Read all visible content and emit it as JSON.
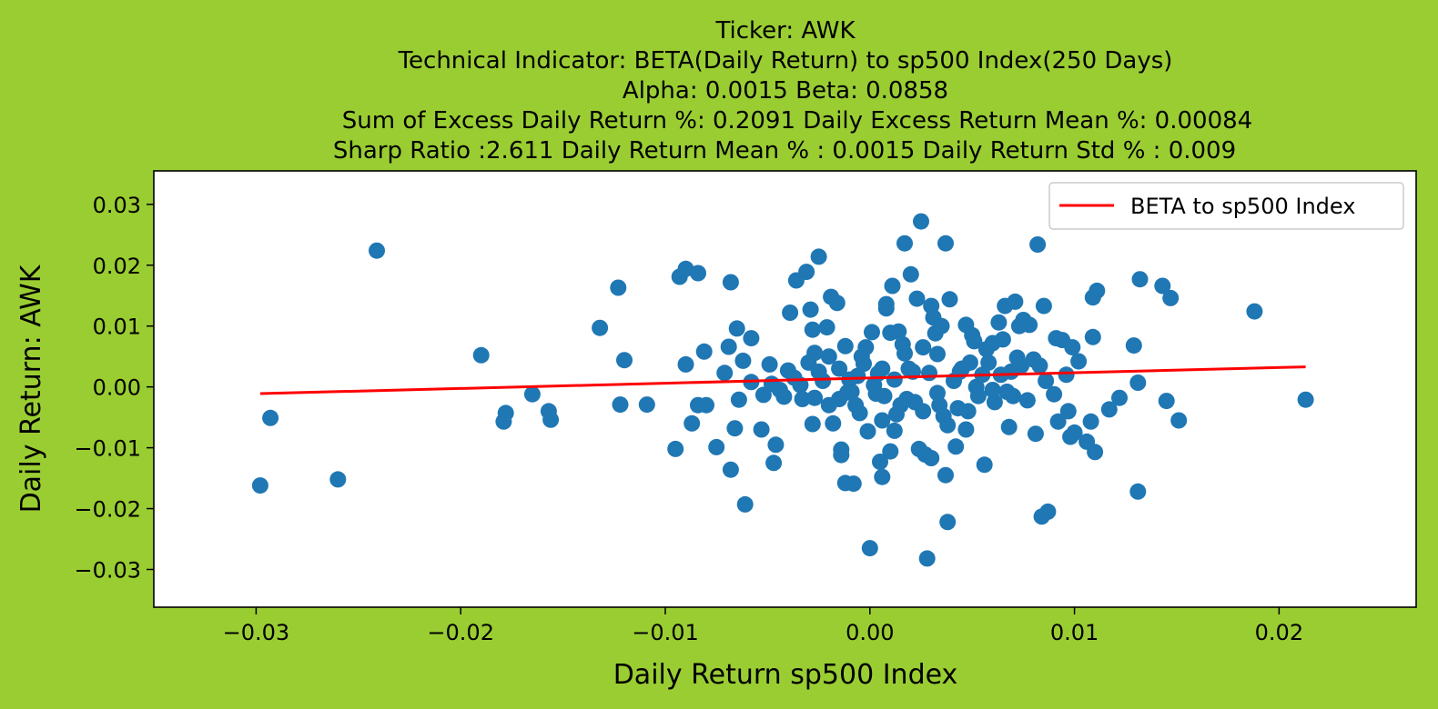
{
  "chart_data": {
    "type": "scatter",
    "title_lines": [
      "Ticker: AWK",
      "Technical Indicator: BETA(Daily Return) to sp500 Index(250 Days)",
      "Alpha: 0.0015   Beta: 0.0858",
      "Sum of Excess Daily Return %: 0.2091   Daily Excess Return Mean %: 0.00084",
      "Sharp Ratio :2.611    Daily Return Mean % : 0.0015    Daily Return Std % : 0.009"
    ],
    "xlabel": "Daily Return sp500 Index",
    "ylabel": "Daily Return: AWK",
    "xlim": [
      -0.035,
      0.0267
    ],
    "ylim": [
      -0.0362,
      0.0355
    ],
    "xticks": [
      -0.03,
      -0.02,
      -0.01,
      0.0,
      0.01,
      0.02
    ],
    "xtick_labels": [
      "−0.03",
      "−0.02",
      "−0.01",
      "0.00",
      "0.01",
      "0.02"
    ],
    "yticks": [
      0.03,
      0.02,
      0.01,
      0.0,
      -0.01,
      -0.02,
      -0.03
    ],
    "ytick_labels": [
      "0.03",
      "0.02",
      "0.01",
      "0.00",
      "−0.01",
      "−0.02",
      "−0.03"
    ],
    "grid": false,
    "legend": {
      "location": "top-right",
      "entries": [
        "BETA to sp500 Index"
      ]
    },
    "colors": {
      "background": "#9acd32",
      "plot_area": "#ffffff",
      "scatter": "#1f77b4",
      "line": "#ff0000"
    },
    "series": [
      {
        "kind": "scatter",
        "points": [
          [
            -0.0298,
            -0.0162
          ],
          [
            -0.0293,
            -0.0051
          ],
          [
            -0.0241,
            0.0224
          ],
          [
            -0.026,
            -0.0152
          ],
          [
            -0.019,
            0.0052
          ],
          [
            -0.0179,
            -0.0057
          ],
          [
            -0.0178,
            -0.0043
          ],
          [
            -0.0165,
            -0.0012
          ],
          [
            -0.0157,
            -0.004
          ],
          [
            -0.0156,
            -0.0054
          ],
          [
            -0.0132,
            0.0097
          ],
          [
            -0.0123,
            0.0163
          ],
          [
            -0.0122,
            -0.0029
          ],
          [
            -0.012,
            0.0044
          ],
          [
            -0.0109,
            -0.0029
          ],
          [
            -0.0095,
            -0.0102
          ],
          [
            -0.0093,
            0.0181
          ],
          [
            -0.009,
            0.0194
          ],
          [
            -0.009,
            0.0037
          ],
          [
            -0.0084,
            0.0187
          ],
          [
            -0.0087,
            -0.006
          ],
          [
            -0.0084,
            -0.003
          ],
          [
            -0.0081,
            0.0058
          ],
          [
            -0.008,
            -0.003
          ],
          [
            -0.0075,
            -0.0099
          ],
          [
            -0.0071,
            0.0023
          ],
          [
            -0.0069,
            0.0066
          ],
          [
            -0.0068,
            0.0172
          ],
          [
            -0.0068,
            -0.0136
          ],
          [
            -0.0066,
            -0.0068
          ],
          [
            -0.0065,
            0.0096
          ],
          [
            -0.0064,
            -0.0021
          ],
          [
            -0.0061,
            -0.0193
          ],
          [
            -0.0062,
            0.0043
          ],
          [
            -0.0058,
            0.008
          ],
          [
            -0.0058,
            0.0008
          ],
          [
            -0.0053,
            -0.007
          ],
          [
            -0.0052,
            -0.0013
          ],
          [
            -0.0049,
            0.0037
          ],
          [
            -0.0048,
            0.0005
          ],
          [
            -0.0047,
            -0.0125
          ],
          [
            -0.0046,
            -0.0095
          ],
          [
            -0.0042,
            -0.0016
          ],
          [
            -0.004,
            0.0027
          ],
          [
            -0.0039,
            0.0122
          ],
          [
            -0.0036,
            0.0175
          ],
          [
            -0.0034,
            0.0003
          ],
          [
            -0.0033,
            -0.002
          ],
          [
            -0.0031,
            0.0189
          ],
          [
            -0.003,
            0.004
          ],
          [
            -0.0029,
            0.0127
          ],
          [
            -0.0028,
            0.0094
          ],
          [
            -0.0027,
            0.0056
          ],
          [
            -0.0025,
            0.0214
          ],
          [
            -0.0028,
            -0.0061
          ],
          [
            -0.0027,
            -0.0018
          ],
          [
            -0.0023,
            0.001
          ],
          [
            -0.0021,
            0.0098
          ],
          [
            -0.0019,
            0.0148
          ],
          [
            -0.002,
            -0.003
          ],
          [
            -0.0018,
            -0.006
          ],
          [
            -0.0016,
            0.0138
          ],
          [
            -0.0015,
            0.003
          ],
          [
            -0.0014,
            -0.0112
          ],
          [
            -0.0014,
            -0.0103
          ],
          [
            -0.0012,
            0.0067
          ],
          [
            -0.0011,
            -0.0009
          ],
          [
            -0.0012,
            -0.0158
          ],
          [
            -0.0008,
            -0.0159
          ],
          [
            -0.0006,
            0.0018
          ],
          [
            -0.0005,
            -0.0043
          ],
          [
            -0.0004,
            0.005
          ],
          [
            -0.0002,
            0.0065
          ],
          [
            0.0001,
            0.009
          ],
          [
            0.0002,
            0.0003
          ],
          [
            -0.0001,
            -0.0073
          ],
          [
            0.0,
            -0.0265
          ],
          [
            0.0003,
            -0.0011
          ],
          [
            0.0005,
            -0.0123
          ],
          [
            0.0006,
            -0.0148
          ],
          [
            0.0006,
            0.003
          ],
          [
            0.0008,
            0.0129
          ],
          [
            0.0008,
            0.0136
          ],
          [
            0.001,
            0.0089
          ],
          [
            0.001,
            -0.0106
          ],
          [
            0.0011,
            0.0166
          ],
          [
            0.0012,
            -0.0072
          ],
          [
            0.0013,
            -0.0045
          ],
          [
            0.0014,
            0.0091
          ],
          [
            0.0016,
            0.007
          ],
          [
            0.0017,
            0.0236
          ],
          [
            0.0018,
            -0.002
          ],
          [
            0.002,
            0.0185
          ],
          [
            0.0021,
            0.0025
          ],
          [
            0.0022,
            -0.0025
          ],
          [
            0.0023,
            0.0145
          ],
          [
            0.0024,
            -0.0102
          ],
          [
            0.0025,
            0.0272
          ],
          [
            0.0026,
            0.0065
          ],
          [
            0.0027,
            -0.0111
          ],
          [
            0.0028,
            -0.0282
          ],
          [
            0.0029,
            0.0023
          ],
          [
            0.003,
            -0.0117
          ],
          [
            0.003,
            0.0133
          ],
          [
            0.0031,
            0.0114
          ],
          [
            0.0032,
            0.0088
          ],
          [
            0.0033,
            0.0054
          ],
          [
            0.0034,
            -0.003
          ],
          [
            0.0035,
            0.01
          ],
          [
            0.0036,
            -0.0048
          ],
          [
            0.0037,
            -0.0145
          ],
          [
            0.0037,
            0.0236
          ],
          [
            0.0038,
            -0.0063
          ],
          [
            0.0038,
            -0.0222
          ],
          [
            0.0039,
            0.0144
          ],
          [
            0.0041,
            0.001
          ],
          [
            0.0042,
            -0.0098
          ],
          [
            0.0043,
            -0.0035
          ],
          [
            0.0045,
            0.003
          ],
          [
            0.0047,
            0.0102
          ],
          [
            0.0047,
            -0.007
          ],
          [
            0.0048,
            -0.004
          ],
          [
            0.0049,
            0.004
          ],
          [
            0.005,
            0.0085
          ],
          [
            0.0051,
            0.0075
          ],
          [
            0.0052,
            0.0
          ],
          [
            0.0055,
            0.002
          ],
          [
            0.0056,
            -0.0128
          ],
          [
            0.0057,
            0.0062
          ],
          [
            0.0058,
            0.004
          ],
          [
            0.006,
            0.0072
          ],
          [
            0.0061,
            -0.0025
          ],
          [
            0.0063,
            0.0106
          ],
          [
            0.0064,
            0.002
          ],
          [
            0.0065,
            0.0078
          ],
          [
            0.0066,
            0.0133
          ],
          [
            0.0067,
            -0.0008
          ],
          [
            0.0068,
            -0.0066
          ],
          [
            0.0069,
            0.0025
          ],
          [
            0.007,
            -0.0015
          ],
          [
            0.0071,
            0.014
          ],
          [
            0.0072,
            0.0048
          ],
          [
            0.0073,
            0.01
          ],
          [
            0.0074,
            0.0035
          ],
          [
            0.0075,
            0.011
          ],
          [
            0.0077,
            -0.0022
          ],
          [
            0.0078,
            0.0102
          ],
          [
            0.008,
            0.0045
          ],
          [
            0.0081,
            -0.0077
          ],
          [
            0.0082,
            0.0234
          ],
          [
            0.0083,
            0.0035
          ],
          [
            0.0084,
            -0.0213
          ],
          [
            0.0085,
            0.0133
          ],
          [
            0.0086,
            0.001
          ],
          [
            0.0087,
            -0.0205
          ],
          [
            0.009,
            -0.0012
          ],
          [
            0.0091,
            0.008
          ],
          [
            0.0092,
            -0.0057
          ],
          [
            0.0094,
            0.0077
          ],
          [
            0.0096,
            0.002
          ],
          [
            0.0097,
            -0.004
          ],
          [
            0.0098,
            -0.0082
          ],
          [
            0.0099,
            0.0065
          ],
          [
            0.01,
            -0.0075
          ],
          [
            0.0102,
            0.0042
          ],
          [
            0.0106,
            -0.009
          ],
          [
            0.0108,
            -0.0057
          ],
          [
            0.0109,
            0.0147
          ],
          [
            0.0109,
            0.0082
          ],
          [
            0.011,
            -0.0107
          ],
          [
            0.0111,
            0.0158
          ],
          [
            0.0117,
            -0.0037
          ],
          [
            0.0122,
            -0.0018
          ],
          [
            0.0129,
            0.0068
          ],
          [
            0.0131,
            0.0007
          ],
          [
            0.0131,
            -0.0172
          ],
          [
            0.0132,
            0.0177
          ],
          [
            0.0143,
            0.0166
          ],
          [
            0.0145,
            -0.0023
          ],
          [
            0.0147,
            0.0146
          ],
          [
            0.0151,
            -0.0055
          ],
          [
            0.0188,
            0.0124
          ],
          [
            0.0213,
            -0.0021
          ],
          [
            -0.0015,
            -0.002
          ],
          [
            -0.001,
            0.0012
          ],
          [
            -0.0007,
            -0.003
          ],
          [
            0.0004,
            0.0022
          ],
          [
            0.0015,
            -0.003
          ],
          [
            0.0019,
            0.003
          ],
          [
            -0.0009,
            -0.0008
          ],
          [
            0.0007,
            -0.0015
          ],
          [
            0.0026,
            -0.004
          ],
          [
            -0.0003,
            0.0038
          ],
          [
            0.0012,
            0.0012
          ],
          [
            0.0033,
            -0.001
          ],
          [
            -0.002,
            0.005
          ],
          [
            0.0044,
            0.0025
          ],
          [
            0.0053,
            -0.0015
          ],
          [
            0.006,
            -0.0005
          ],
          [
            -0.0037,
            0.0015
          ],
          [
            -0.0044,
            -0.0005
          ],
          [
            0.0017,
            0.0055
          ],
          [
            0.0006,
            -0.0055
          ],
          [
            -0.0025,
            0.0025
          ]
        ]
      },
      {
        "kind": "line",
        "name": "BETA to sp500 Index",
        "points": [
          [
            -0.0298,
            -0.0011
          ],
          [
            0.0213,
            0.0033
          ]
        ]
      }
    ]
  }
}
